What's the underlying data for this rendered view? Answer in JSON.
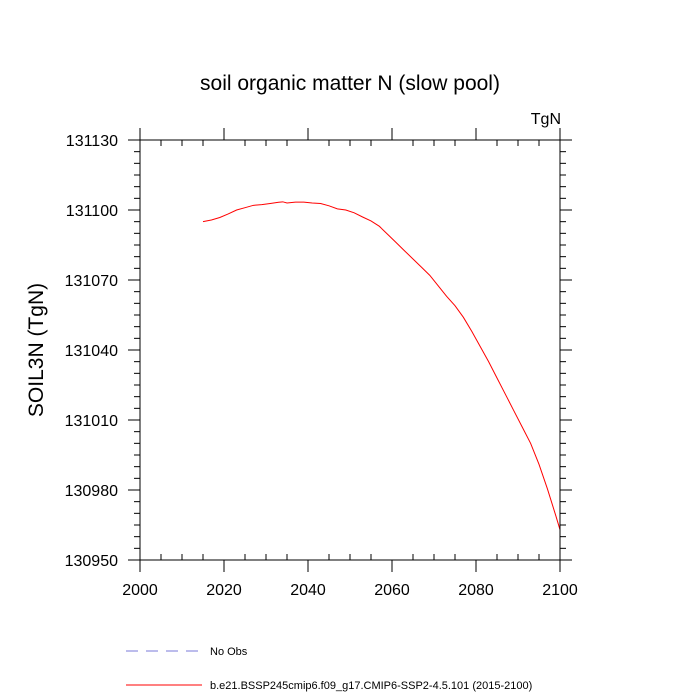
{
  "chart_data": {
    "type": "line",
    "title": "soil organic matter N (slow pool)",
    "units_label": "TgN",
    "xlabel": "",
    "ylabel": "SOIL3N  (TgN)",
    "xlim": [
      2000,
      2100
    ],
    "ylim": [
      130950,
      131130
    ],
    "x_ticks": [
      2000,
      2020,
      2040,
      2060,
      2080,
      2100
    ],
    "x_tick_labels": [
      "2000",
      "2020",
      "2040",
      "2060",
      "2080",
      "2100"
    ],
    "y_ticks": [
      130950,
      130980,
      131010,
      131040,
      131070,
      131100,
      131130
    ],
    "y_tick_labels": [
      "130950",
      "130980",
      "131010",
      "131040",
      "131070",
      "131100",
      "131130"
    ],
    "x_minor_step": 5,
    "y_minor_step": 5,
    "legend_placement": "bottom",
    "series": [
      {
        "name": "b.e21.BSSP245cmip6.f09_g17.CMIP6-SSP2-4.5.101 (2015-2100)",
        "color": "#ff0000",
        "style": "solid",
        "x": [
          2015,
          2017,
          2019,
          2021,
          2023,
          2025,
          2027,
          2029,
          2031,
          2033,
          2034,
          2035,
          2037,
          2039,
          2041,
          2043,
          2045,
          2047,
          2049,
          2051,
          2053,
          2055,
          2057,
          2059,
          2061,
          2063,
          2065,
          2067,
          2069,
          2071,
          2073,
          2075,
          2077,
          2079,
          2081,
          2083,
          2085,
          2087,
          2089,
          2091,
          2093,
          2095,
          2097,
          2099,
          2100
        ],
        "values": [
          131095,
          131095.7,
          131096.8,
          131098.3,
          131100,
          131101,
          131102,
          131102.3,
          131102.8,
          131103.3,
          131103.5,
          131103,
          131103.4,
          131103.4,
          131103,
          131102.8,
          131101.8,
          131100.5,
          131100,
          131098.8,
          131097,
          131095.3,
          131093,
          131089.5,
          131086,
          131082.5,
          131079,
          131075.5,
          131072,
          131067.5,
          131063,
          131059,
          131054,
          131048,
          131041.5,
          131035,
          131028,
          131021,
          131014,
          131007,
          131000,
          130991,
          130980.5,
          130969,
          130963
        ]
      },
      {
        "name": "No Obs",
        "color": "#7a7ad8",
        "style": "dashed",
        "x": [],
        "values": []
      }
    ]
  }
}
